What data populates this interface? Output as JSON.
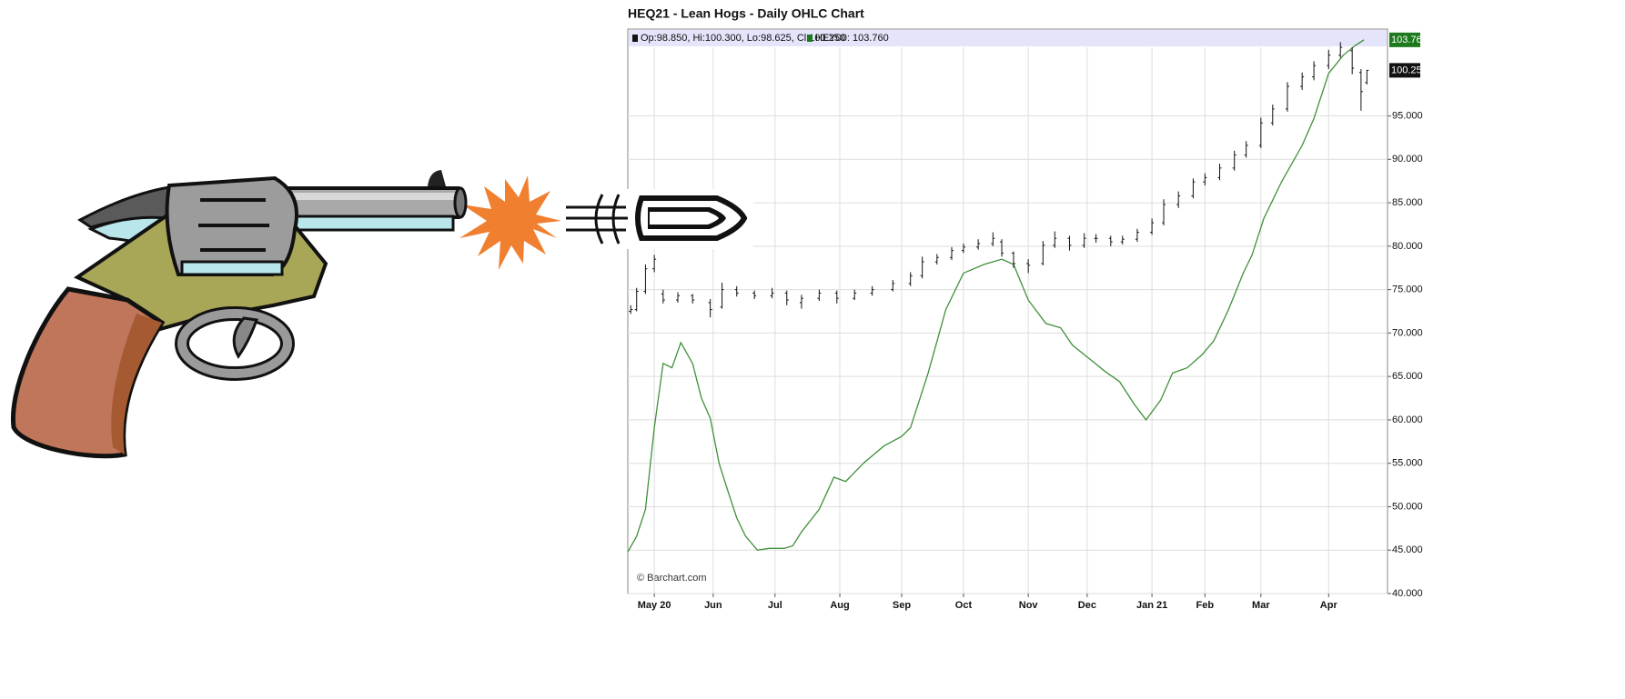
{
  "chart_data": {
    "type": "ohlc",
    "title": "HEQ21 - Lean Hogs - Daily OHLC Chart",
    "watermark": "© Barchart.com",
    "grid": true,
    "xlim": [
      0,
      258
    ],
    "xticks": [
      {
        "value": 9,
        "label": "May 20"
      },
      {
        "value": 29,
        "label": "Jun"
      },
      {
        "value": 50,
        "label": "Jul"
      },
      {
        "value": 72,
        "label": "Aug"
      },
      {
        "value": 93,
        "label": "Sep"
      },
      {
        "value": 114,
        "label": "Oct"
      },
      {
        "value": 136,
        "label": "Nov"
      },
      {
        "value": 156,
        "label": "Dec"
      },
      {
        "value": 178,
        "label": "Jan 21"
      },
      {
        "value": 196,
        "label": "Feb"
      },
      {
        "value": 215,
        "label": "Mar"
      },
      {
        "value": 238,
        "label": "Apr"
      }
    ],
    "ylim": [
      40,
      105
    ],
    "yticks": [
      {
        "value": 40,
        "label": "40.000"
      },
      {
        "value": 45,
        "label": "45.000"
      },
      {
        "value": 50,
        "label": "50.000"
      },
      {
        "value": 55,
        "label": "55.000"
      },
      {
        "value": 60,
        "label": "60.000"
      },
      {
        "value": 65,
        "label": "65.000"
      },
      {
        "value": 70,
        "label": "70.000"
      },
      {
        "value": 75,
        "label": "75.000"
      },
      {
        "value": 80,
        "label": "80.000"
      },
      {
        "value": 85,
        "label": "85.000"
      },
      {
        "value": 90,
        "label": "90.000"
      },
      {
        "value": 95,
        "label": "95.000"
      }
    ],
    "ohlc": {
      "name": "Op:98.850, Hi:100.300, Lo:98.625, Cl:100.250",
      "color": "#111111",
      "last_label": "100.250",
      "x": [
        1,
        3,
        6,
        9,
        12,
        17,
        22,
        28,
        32,
        37,
        43,
        49,
        54,
        59,
        65,
        71,
        77,
        83,
        90,
        96,
        100,
        105,
        110,
        114,
        119,
        124,
        127,
        131,
        136,
        141,
        145,
        150,
        155,
        159,
        164,
        168,
        173,
        178,
        182,
        187,
        192,
        196,
        201,
        206,
        210,
        215,
        219,
        224,
        229,
        233,
        238,
        242,
        246,
        249,
        251
      ],
      "open": [
        72.5,
        72.7,
        74.8,
        77.4,
        74.5,
        73.8,
        74.3,
        73.5,
        73.0,
        75.0,
        74.6,
        74.3,
        74.6,
        73.5,
        74.0,
        74.6,
        74.0,
        74.6,
        75.0,
        75.7,
        76.6,
        78.2,
        78.7,
        79.5,
        79.9,
        80.3,
        80.5,
        79.2,
        78.0,
        78.0,
        80.1,
        80.9,
        80.1,
        80.9,
        80.9,
        80.5,
        80.8,
        81.6,
        82.7,
        84.8,
        85.8,
        87.4,
        87.9,
        89.0,
        90.5,
        91.6,
        94.2,
        95.8,
        98.4,
        99.5,
        100.8,
        102.0,
        102.5,
        100.0,
        98.85
      ],
      "high": [
        73.2,
        75.2,
        77.9,
        79.0,
        75.0,
        74.7,
        74.5,
        73.9,
        75.8,
        75.4,
        74.9,
        75.2,
        74.9,
        74.4,
        75.0,
        74.9,
        75.0,
        75.4,
        76.1,
        77.0,
        78.8,
        79.1,
        79.9,
        80.3,
        80.8,
        81.6,
        80.8,
        79.4,
        78.5,
        80.6,
        81.7,
        81.2,
        81.5,
        81.4,
        81.2,
        81.2,
        82.0,
        83.2,
        85.4,
        86.3,
        87.8,
        88.4,
        89.5,
        91.0,
        92.1,
        94.8,
        96.3,
        98.9,
        100.0,
        101.3,
        102.6,
        103.5,
        102.9,
        100.4,
        100.3
      ],
      "low": [
        72.2,
        72.5,
        74.5,
        77.0,
        73.4,
        73.5,
        73.4,
        71.8,
        72.8,
        74.2,
        73.9,
        74.0,
        73.2,
        72.8,
        73.7,
        73.4,
        73.8,
        74.3,
        74.8,
        75.4,
        76.3,
        77.9,
        78.4,
        79.2,
        79.6,
        80.0,
        78.8,
        77.5,
        76.9,
        77.8,
        79.8,
        79.5,
        79.8,
        80.4,
        80.0,
        80.2,
        80.5,
        81.3,
        82.4,
        84.4,
        85.5,
        87.0,
        87.6,
        88.7,
        90.2,
        91.3,
        93.9,
        95.5,
        98.0,
        99.1,
        100.4,
        101.7,
        99.8,
        95.6,
        98.625
      ],
      "close": [
        72.7,
        74.8,
        77.4,
        78.5,
        73.8,
        74.3,
        73.8,
        72.7,
        75.0,
        74.6,
        74.3,
        74.6,
        73.8,
        74.0,
        74.6,
        74.0,
        74.6,
        75.0,
        75.7,
        76.6,
        78.2,
        78.7,
        79.5,
        79.9,
        80.3,
        80.9,
        79.2,
        78.0,
        77.8,
        80.1,
        80.9,
        80.1,
        80.9,
        80.9,
        80.5,
        80.8,
        81.6,
        82.7,
        84.8,
        85.8,
        87.4,
        87.9,
        89.0,
        90.5,
        91.6,
        94.2,
        95.8,
        98.4,
        99.5,
        100.8,
        102.0,
        102.9,
        100.5,
        97.8,
        100.25
      ]
    },
    "series": [
      {
        "name": "HEY00: 103.760",
        "type": "line",
        "color": "#3f8f3a",
        "tag_color": "#1c7a1c",
        "last_label": "103.760",
        "x": [
          0,
          3,
          6,
          9,
          12,
          15,
          18,
          22,
          25,
          28,
          31,
          34,
          37,
          40,
          44,
          48,
          53,
          56,
          59,
          65,
          70,
          74,
          80,
          87,
          93,
          96,
          102,
          108,
          114,
          121,
          127,
          131,
          136,
          142,
          147,
          151,
          158,
          162,
          167,
          172,
          176,
          181,
          185,
          190,
          195,
          199,
          204,
          209,
          212,
          216,
          222,
          229,
          233,
          238,
          243,
          247,
          250
        ],
        "values": [
          44.8,
          46.6,
          49.7,
          59.1,
          66.5,
          66.0,
          68.9,
          66.5,
          62.5,
          60.2,
          55.0,
          51.8,
          48.7,
          46.6,
          45.0,
          45.2,
          45.2,
          45.5,
          47.1,
          49.7,
          53.4,
          52.9,
          55.0,
          57.0,
          58.1,
          59.1,
          65.4,
          72.7,
          76.9,
          77.9,
          78.5,
          77.9,
          73.8,
          71.1,
          70.6,
          68.6,
          66.7,
          65.6,
          64.4,
          61.8,
          60.0,
          62.3,
          65.4,
          66.0,
          67.5,
          69.1,
          72.7,
          76.9,
          79.0,
          83.2,
          87.4,
          91.6,
          94.7,
          99.9,
          102.0,
          103.1,
          103.76
        ]
      }
    ]
  }
}
